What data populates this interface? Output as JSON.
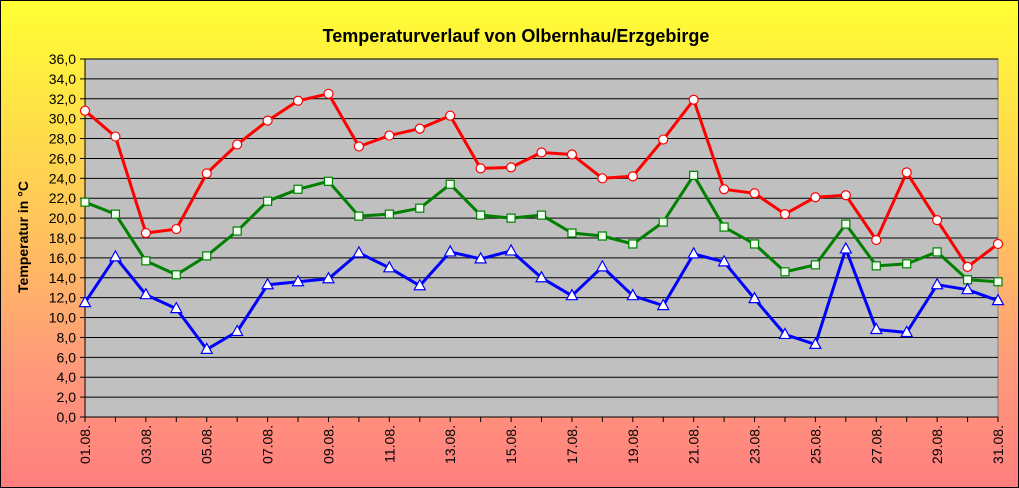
{
  "chart_data": {
    "type": "line",
    "title": "Temperaturverlauf von Olbernhau/Erzgebirge",
    "ylabel": "Temperatur in  °C",
    "xlabel": "",
    "ylim": [
      0,
      36
    ],
    "ytick_step": 2,
    "ytick_format": "comma-1",
    "grid": true,
    "plot_background": "#c0c0c0",
    "categories": [
      "01.08.",
      "02.08.",
      "03.08.",
      "04.08.",
      "05.08.",
      "06.08.",
      "07.08.",
      "08.08.",
      "09.08.",
      "10.08.",
      "11.08.",
      "12.08.",
      "13.08.",
      "14.08.",
      "15.08.",
      "16.08.",
      "17.08.",
      "18.08.",
      "19.08.",
      "20.08.",
      "21.08.",
      "22.08.",
      "23.08.",
      "24.08.",
      "25.08.",
      "26.08.",
      "27.08.",
      "28.08.",
      "29.08.",
      "30.08.",
      "31.08."
    ],
    "xtick_labels": [
      "01.08.",
      "03.08.",
      "05.08.",
      "07.08.",
      "09.08.",
      "11.08.",
      "13.08.",
      "15.08.",
      "17.08.",
      "19.08.",
      "21.08.",
      "23.08.",
      "25.08.",
      "27.08.",
      "29.08.",
      "31.08."
    ],
    "series": [
      {
        "color": "#ff0000",
        "marker": "circle",
        "values": [
          30.8,
          28.2,
          18.5,
          18.9,
          24.5,
          27.4,
          29.8,
          31.8,
          32.5,
          27.2,
          28.3,
          29.0,
          30.3,
          25.0,
          25.1,
          26.6,
          26.4,
          24.0,
          24.2,
          27.9,
          31.9,
          22.9,
          22.5,
          20.4,
          22.1,
          22.3,
          17.8,
          24.6,
          19.8,
          15.1,
          17.4
        ]
      },
      {
        "color": "#008000",
        "marker": "square",
        "values": [
          21.6,
          20.4,
          15.7,
          14.3,
          16.2,
          18.7,
          21.7,
          22.9,
          23.7,
          20.2,
          20.4,
          21.0,
          23.4,
          20.3,
          20.0,
          20.3,
          18.5,
          18.2,
          17.4,
          19.6,
          24.3,
          19.1,
          17.4,
          14.6,
          15.3,
          19.4,
          15.2,
          15.4,
          16.6,
          13.8,
          13.6
        ]
      },
      {
        "color": "#0000ff",
        "marker": "triangle",
        "values": [
          11.5,
          16.1,
          12.3,
          10.9,
          6.8,
          8.6,
          13.3,
          13.6,
          13.9,
          16.5,
          15.0,
          13.2,
          16.6,
          15.9,
          16.7,
          14.0,
          12.2,
          15.1,
          12.2,
          11.2,
          16.4,
          15.6,
          11.9,
          8.3,
          7.3,
          16.9,
          8.8,
          8.5,
          13.3,
          12.8,
          11.7
        ]
      }
    ]
  }
}
